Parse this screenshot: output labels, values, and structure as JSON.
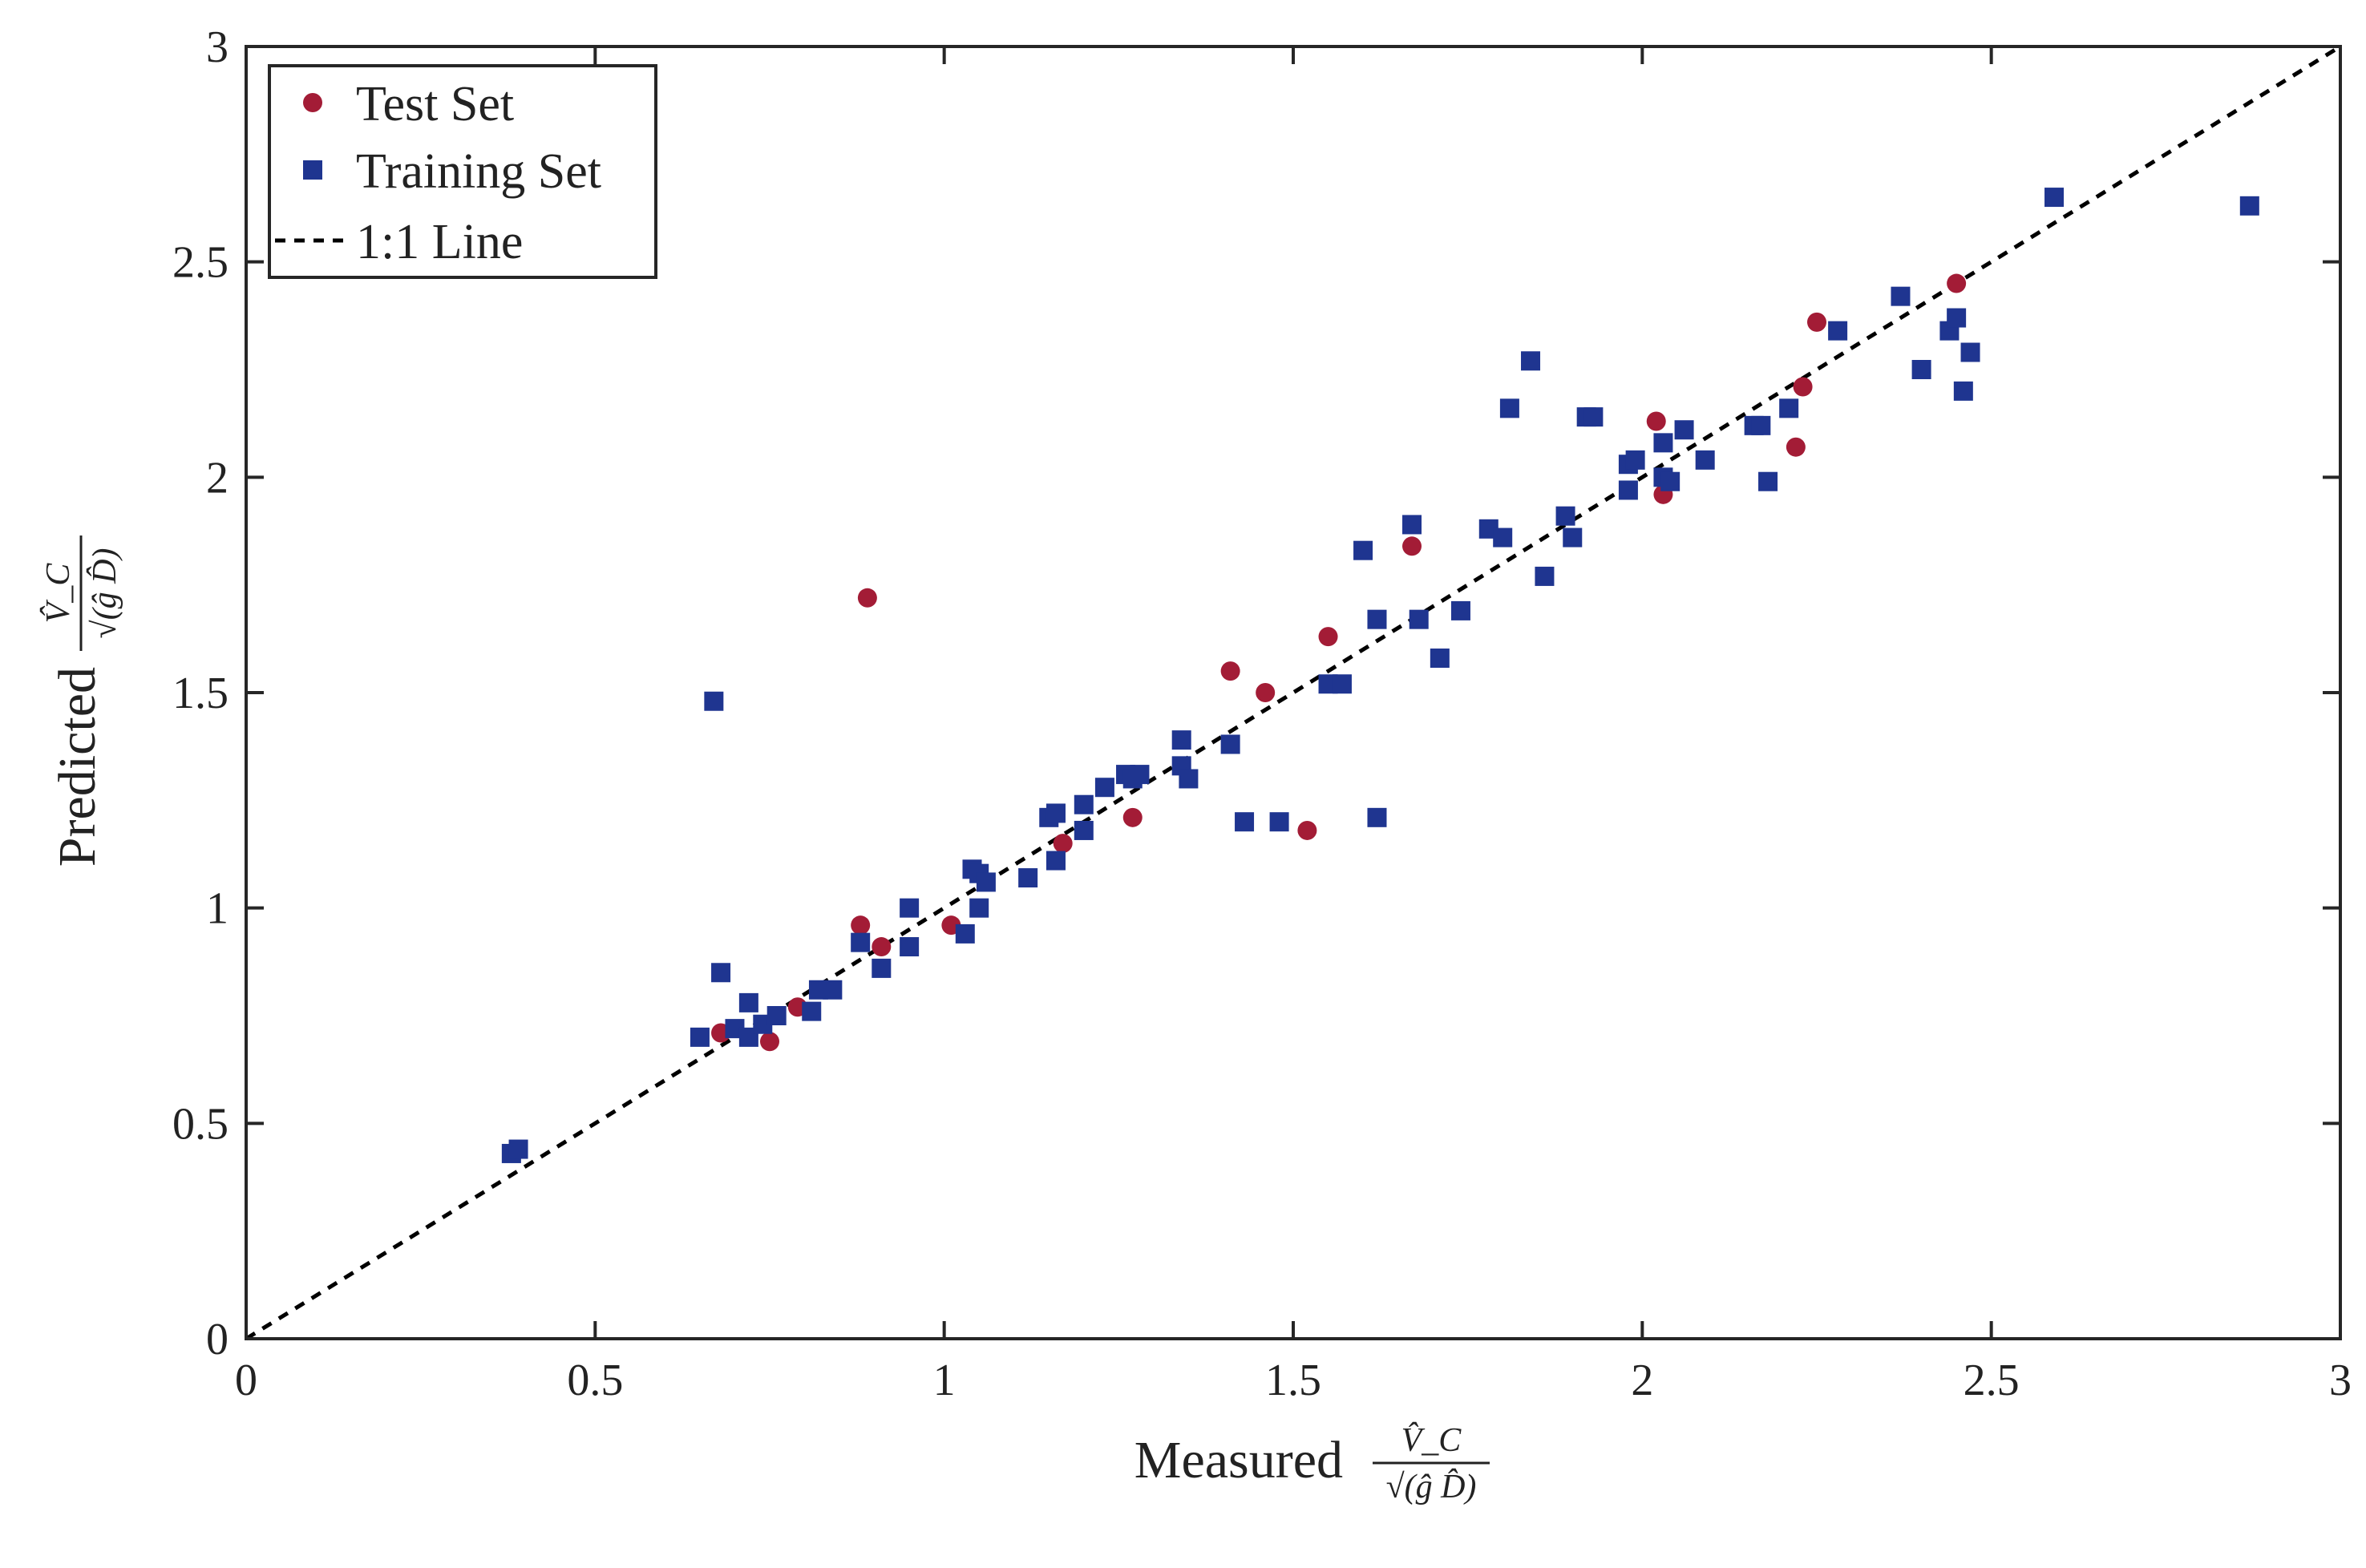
{
  "chart_data": {
    "type": "scatter",
    "title": "",
    "xlabel": {
      "prefix": "Measured",
      "numerator": "V̂_C",
      "denominator": "√(ĝ D̂)"
    },
    "ylabel": {
      "prefix": "Predicted",
      "numerator": "V̂_C",
      "denominator": "√(ĝ D̂)"
    },
    "xlim": [
      0,
      3
    ],
    "ylim": [
      0,
      3
    ],
    "xticks": [
      0,
      0.5,
      1,
      1.5,
      2,
      2.5,
      3
    ],
    "yticks": [
      0,
      0.5,
      1,
      1.5,
      2,
      2.5,
      3
    ],
    "xtick_labels": [
      "0",
      "0.5",
      "1",
      "1.5",
      "2",
      "2.5",
      "3"
    ],
    "ytick_labels": [
      "0",
      "0.5",
      "1",
      "1.5",
      "2",
      "2.5",
      "3"
    ],
    "grid": false,
    "legend": {
      "position": "top-left",
      "entries": [
        "Test Set",
        "Training Set",
        "1:1 Line"
      ]
    },
    "series": [
      {
        "name": "Test Set",
        "marker": "circle",
        "color": "#A31C36",
        "points": [
          [
            0.68,
            0.71
          ],
          [
            0.75,
            0.69
          ],
          [
            0.79,
            0.77
          ],
          [
            0.88,
            0.96
          ],
          [
            0.89,
            1.72
          ],
          [
            0.91,
            0.91
          ],
          [
            1.01,
            0.96
          ],
          [
            1.17,
            1.15
          ],
          [
            1.27,
            1.21
          ],
          [
            1.41,
            1.55
          ],
          [
            1.46,
            1.5
          ],
          [
            1.52,
            1.18
          ],
          [
            1.55,
            1.63
          ],
          [
            1.67,
            1.84
          ],
          [
            2.02,
            2.13
          ],
          [
            2.03,
            1.96
          ],
          [
            2.22,
            2.07
          ],
          [
            2.23,
            2.21
          ],
          [
            2.25,
            2.36
          ],
          [
            2.45,
            2.45
          ]
        ]
      },
      {
        "name": "Training Set",
        "marker": "square",
        "color": "#1F3590",
        "points": [
          [
            0.38,
            0.43
          ],
          [
            0.39,
            0.44
          ],
          [
            0.65,
            0.7
          ],
          [
            0.67,
            1.48
          ],
          [
            0.68,
            0.85
          ],
          [
            0.7,
            0.72
          ],
          [
            0.72,
            0.78
          ],
          [
            0.72,
            0.7
          ],
          [
            0.74,
            0.73
          ],
          [
            0.76,
            0.75
          ],
          [
            0.81,
            0.76
          ],
          [
            0.82,
            0.81
          ],
          [
            0.84,
            0.81
          ],
          [
            0.88,
            0.92
          ],
          [
            0.91,
            0.86
          ],
          [
            0.95,
            0.91
          ],
          [
            0.95,
            1.0
          ],
          [
            1.03,
            0.94
          ],
          [
            1.04,
            1.09
          ],
          [
            1.05,
            1.0
          ],
          [
            1.05,
            1.08
          ],
          [
            1.06,
            1.06
          ],
          [
            1.12,
            1.07
          ],
          [
            1.15,
            1.21
          ],
          [
            1.16,
            1.22
          ],
          [
            1.16,
            1.11
          ],
          [
            1.2,
            1.18
          ],
          [
            1.2,
            1.24
          ],
          [
            1.23,
            1.28
          ],
          [
            1.26,
            1.31
          ],
          [
            1.27,
            1.3
          ],
          [
            1.28,
            1.31
          ],
          [
            1.34,
            1.39
          ],
          [
            1.34,
            1.33
          ],
          [
            1.35,
            1.3
          ],
          [
            1.41,
            1.38
          ],
          [
            1.43,
            1.2
          ],
          [
            1.48,
            1.2
          ],
          [
            1.55,
            1.52
          ],
          [
            1.57,
            1.52
          ],
          [
            1.6,
            1.83
          ],
          [
            1.62,
            1.67
          ],
          [
            1.62,
            1.21
          ],
          [
            1.67,
            1.89
          ],
          [
            1.68,
            1.67
          ],
          [
            1.71,
            1.58
          ],
          [
            1.74,
            1.69
          ],
          [
            1.78,
            1.88
          ],
          [
            1.8,
            1.86
          ],
          [
            1.81,
            2.16
          ],
          [
            1.84,
            2.27
          ],
          [
            1.86,
            1.77
          ],
          [
            1.89,
            1.91
          ],
          [
            1.9,
            1.86
          ],
          [
            1.92,
            2.14
          ],
          [
            1.93,
            2.14
          ],
          [
            1.98,
            2.03
          ],
          [
            1.99,
            2.04
          ],
          [
            1.98,
            1.97
          ],
          [
            2.03,
            2.0
          ],
          [
            2.03,
            2.08
          ],
          [
            2.04,
            1.99
          ],
          [
            2.06,
            2.11
          ],
          [
            2.09,
            2.04
          ],
          [
            2.16,
            2.12
          ],
          [
            2.17,
            2.12
          ],
          [
            2.18,
            1.99
          ],
          [
            2.21,
            2.16
          ],
          [
            2.28,
            2.34
          ],
          [
            2.37,
            2.42
          ],
          [
            2.4,
            2.25
          ],
          [
            2.44,
            2.34
          ],
          [
            2.45,
            2.37
          ],
          [
            2.46,
            2.2
          ],
          [
            2.47,
            2.29
          ],
          [
            2.59,
            2.65
          ],
          [
            2.87,
            2.63
          ]
        ]
      },
      {
        "name": "1:1 Line",
        "style": "dashed",
        "color": "#000000",
        "x": [
          0,
          3
        ],
        "y": [
          0,
          3
        ]
      }
    ]
  }
}
